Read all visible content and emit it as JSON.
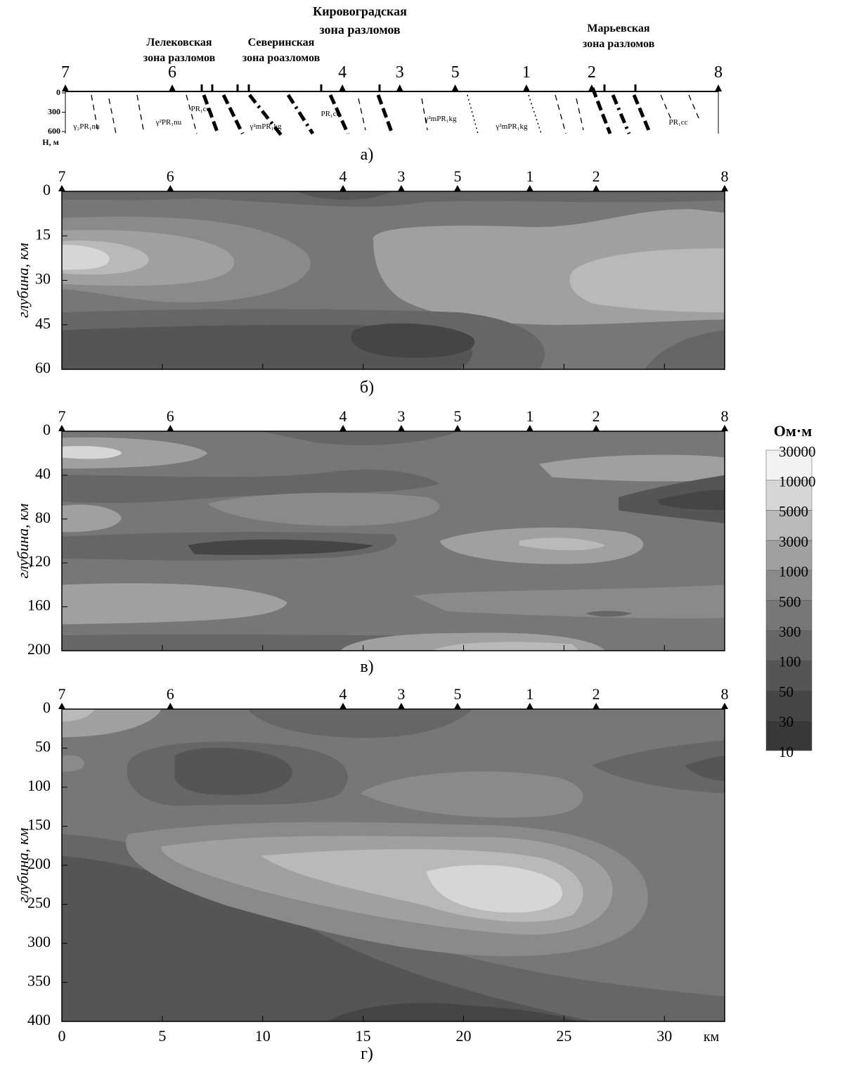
{
  "panel_a": {
    "zones": [
      [
        "Лелековская",
        "зона разломов"
      ],
      [
        "Северинская",
        "зона роазломов"
      ],
      [
        "Кировоградская",
        "зона разломов"
      ],
      [
        "Марьевская",
        "зона разломов"
      ]
    ],
    "depth_ticks": [
      0,
      300,
      600
    ],
    "depth_label": "H, м",
    "formations": [
      "γ₂PR₁nu",
      "γ²PR₁nu",
      "PR₁cc",
      "γ²mPR₁kg",
      "PR₁cc",
      "γ²mPR₁kg",
      "γ²mPR₁kg",
      "PR₁cc"
    ],
    "caption": "а)"
  },
  "stations": {
    "labels": [
      "7",
      "6",
      "4",
      "3",
      "5",
      "1",
      "2",
      "8"
    ],
    "x": [
      0,
      5.4,
      14,
      16.9,
      19.7,
      23.3,
      26.6,
      33
    ]
  },
  "colorbar": {
    "title": "Ом·м",
    "levels": [
      10,
      30,
      50,
      100,
      300,
      500,
      1000,
      3000,
      5000,
      10000,
      30000
    ],
    "colors": [
      "#383838",
      "#454545",
      "#555555",
      "#666666",
      "#777777",
      "#8a8a8a",
      "#a0a0a0",
      "#b9b9b9",
      "#d6d6d6",
      "#f2f2f2"
    ]
  },
  "chart_data": [
    {
      "type": "contour",
      "caption": "б)",
      "ylabel": "глубина, км",
      "xlim": [
        0,
        33
      ],
      "xticks": [
        0,
        5,
        10,
        15,
        20,
        25,
        30
      ],
      "ylim": [
        0,
        60
      ],
      "yticks": [
        0,
        15,
        30,
        45,
        60
      ]
    },
    {
      "type": "contour",
      "caption": "в)",
      "ylabel": "глубина, км",
      "xlim": [
        0,
        33
      ],
      "xticks": [
        0,
        5,
        10,
        15,
        20,
        25,
        30
      ],
      "ylim": [
        0,
        200
      ],
      "yticks": [
        0,
        40,
        80,
        120,
        160,
        200
      ]
    },
    {
      "type": "contour",
      "caption": "г)",
      "ylabel": "глубина, км",
      "xlabel": "км",
      "xlim": [
        0,
        33
      ],
      "xticks": [
        0,
        5,
        10,
        15,
        20,
        25,
        30
      ],
      "ylim": [
        0,
        400
      ],
      "yticks": [
        0,
        50,
        100,
        150,
        200,
        250,
        300,
        350,
        400
      ]
    }
  ]
}
